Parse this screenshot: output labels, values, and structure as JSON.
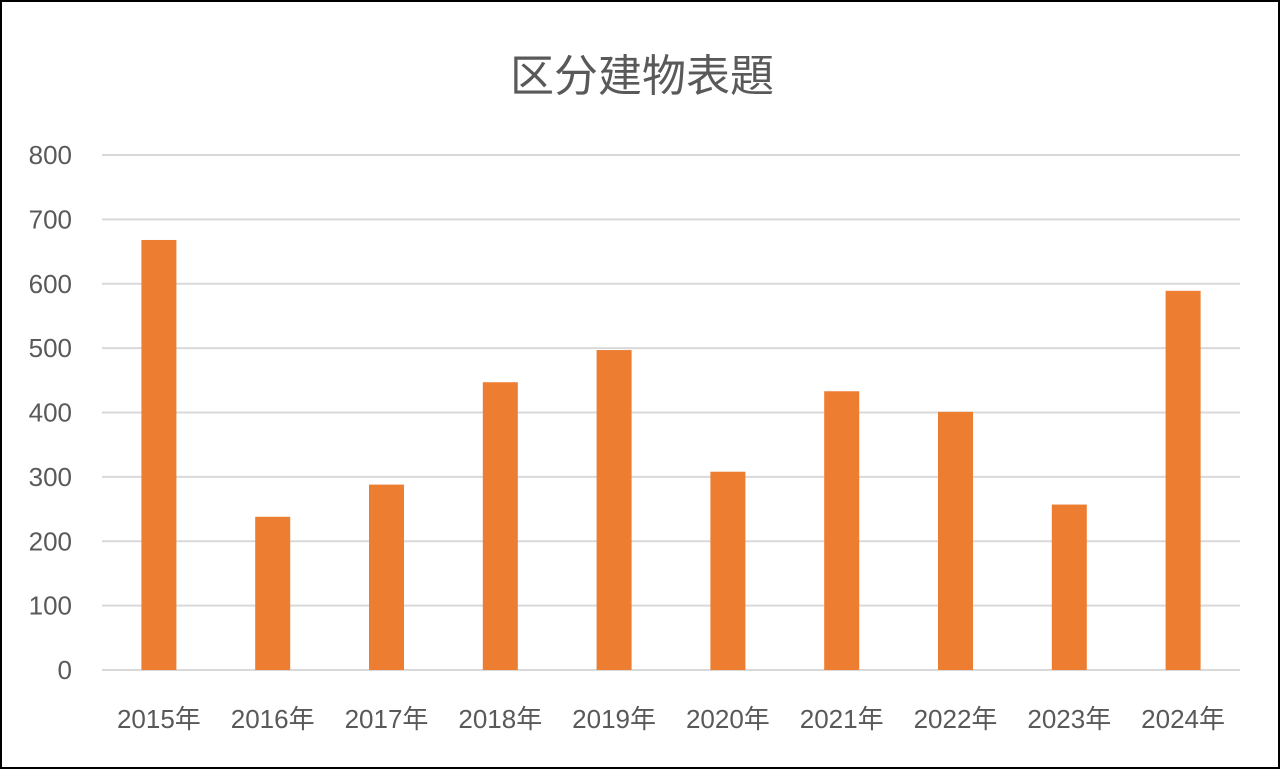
{
  "chart_data": {
    "type": "bar",
    "title": "区分建物表題",
    "categories": [
      "2015年",
      "2016年",
      "2017年",
      "2018年",
      "2019年",
      "2020年",
      "2021年",
      "2022年",
      "2023年",
      "2024年"
    ],
    "series": [
      {
        "values": [
          668,
          238,
          288,
          447,
          497,
          308,
          433,
          401,
          257,
          589
        ]
      }
    ],
    "xlabel": "",
    "ylabel": "",
    "ylim": [
      0,
      800
    ],
    "yticks": [
      0,
      100,
      200,
      300,
      400,
      500,
      600,
      700,
      800
    ],
    "grid": true,
    "legend": "none",
    "bar_color": "#ED7D31",
    "grid_color": "#D9D9D9",
    "text_color": "#595959"
  }
}
